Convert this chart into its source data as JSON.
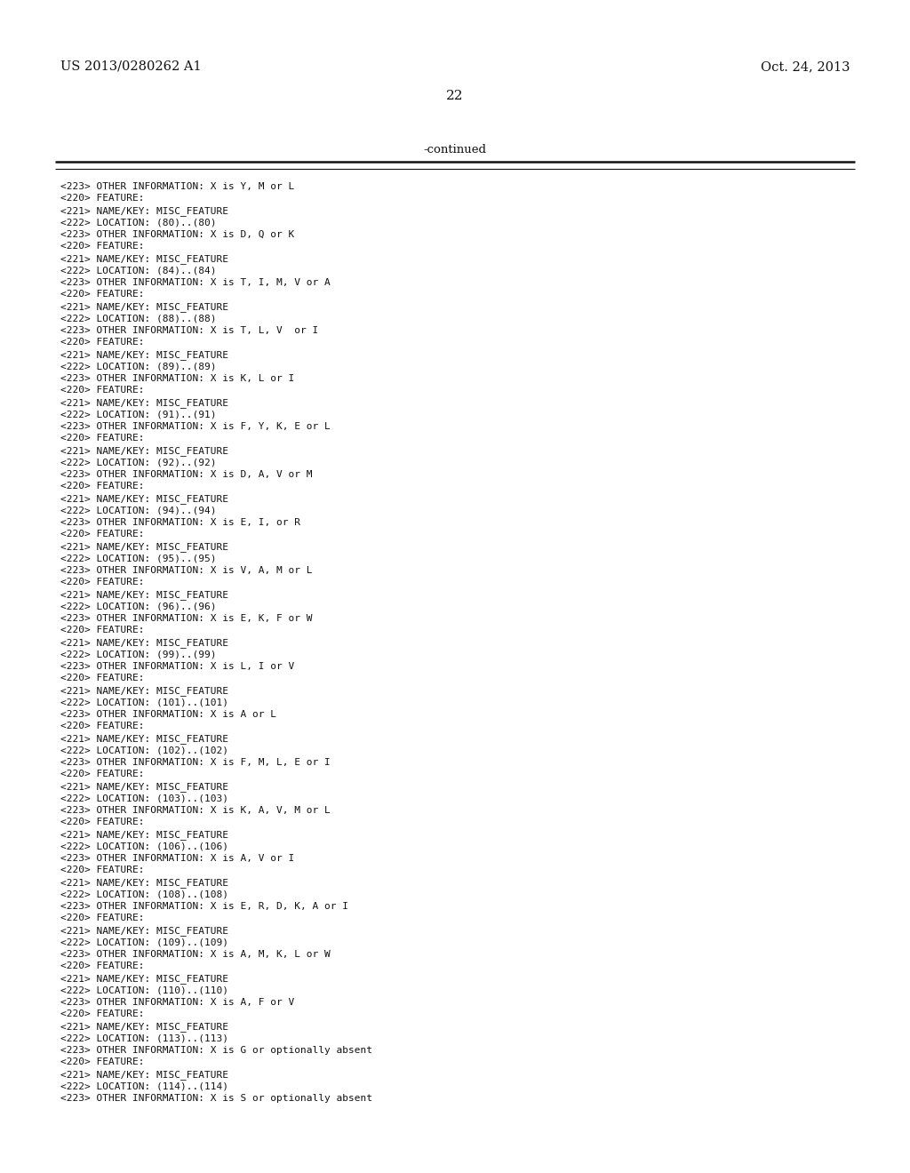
{
  "bg_color": "#ffffff",
  "header_left": "US 2013/0280262 A1",
  "header_right": "Oct. 24, 2013",
  "page_number": "22",
  "continued_label": "-continued",
  "font_family": "monospace",
  "header_fontsize": 10.5,
  "page_num_fontsize": 11,
  "continued_fontsize": 9.5,
  "body_fontsize": 8.0,
  "body_lines": [
    "<223> OTHER INFORMATION: X is Y, M or L",
    "<220> FEATURE:",
    "<221> NAME/KEY: MISC_FEATURE",
    "<222> LOCATION: (80)..(80)",
    "<223> OTHER INFORMATION: X is D, Q or K",
    "<220> FEATURE:",
    "<221> NAME/KEY: MISC_FEATURE",
    "<222> LOCATION: (84)..(84)",
    "<223> OTHER INFORMATION: X is T, I, M, V or A",
    "<220> FEATURE:",
    "<221> NAME/KEY: MISC_FEATURE",
    "<222> LOCATION: (88)..(88)",
    "<223> OTHER INFORMATION: X is T, L, V  or I",
    "<220> FEATURE:",
    "<221> NAME/KEY: MISC_FEATURE",
    "<222> LOCATION: (89)..(89)",
    "<223> OTHER INFORMATION: X is K, L or I",
    "<220> FEATURE:",
    "<221> NAME/KEY: MISC_FEATURE",
    "<222> LOCATION: (91)..(91)",
    "<223> OTHER INFORMATION: X is F, Y, K, E or L",
    "<220> FEATURE:",
    "<221> NAME/KEY: MISC_FEATURE",
    "<222> LOCATION: (92)..(92)",
    "<223> OTHER INFORMATION: X is D, A, V or M",
    "<220> FEATURE:",
    "<221> NAME/KEY: MISC_FEATURE",
    "<222> LOCATION: (94)..(94)",
    "<223> OTHER INFORMATION: X is E, I, or R",
    "<220> FEATURE:",
    "<221> NAME/KEY: MISC_FEATURE",
    "<222> LOCATION: (95)..(95)",
    "<223> OTHER INFORMATION: X is V, A, M or L",
    "<220> FEATURE:",
    "<221> NAME/KEY: MISC_FEATURE",
    "<222> LOCATION: (96)..(96)",
    "<223> OTHER INFORMATION: X is E, K, F or W",
    "<220> FEATURE:",
    "<221> NAME/KEY: MISC_FEATURE",
    "<222> LOCATION: (99)..(99)",
    "<223> OTHER INFORMATION: X is L, I or V",
    "<220> FEATURE:",
    "<221> NAME/KEY: MISC_FEATURE",
    "<222> LOCATION: (101)..(101)",
    "<223> OTHER INFORMATION: X is A or L",
    "<220> FEATURE:",
    "<221> NAME/KEY: MISC_FEATURE",
    "<222> LOCATION: (102)..(102)",
    "<223> OTHER INFORMATION: X is F, M, L, E or I",
    "<220> FEATURE:",
    "<221> NAME/KEY: MISC_FEATURE",
    "<222> LOCATION: (103)..(103)",
    "<223> OTHER INFORMATION: X is K, A, V, M or L",
    "<220> FEATURE:",
    "<221> NAME/KEY: MISC_FEATURE",
    "<222> LOCATION: (106)..(106)",
    "<223> OTHER INFORMATION: X is A, V or I",
    "<220> FEATURE:",
    "<221> NAME/KEY: MISC_FEATURE",
    "<222> LOCATION: (108)..(108)",
    "<223> OTHER INFORMATION: X is E, R, D, K, A or I",
    "<220> FEATURE:",
    "<221> NAME/KEY: MISC_FEATURE",
    "<222> LOCATION: (109)..(109)",
    "<223> OTHER INFORMATION: X is A, M, K, L or W",
    "<220> FEATURE:",
    "<221> NAME/KEY: MISC_FEATURE",
    "<222> LOCATION: (110)..(110)",
    "<223> OTHER INFORMATION: X is A, F or V",
    "<220> FEATURE:",
    "<221> NAME/KEY: MISC_FEATURE",
    "<222> LOCATION: (113)..(113)",
    "<223> OTHER INFORMATION: X is G or optionally absent",
    "<220> FEATURE:",
    "<221> NAME/KEY: MISC_FEATURE",
    "<222> LOCATION: (114)..(114)",
    "<223> OTHER INFORMATION: X is S or optionally absent"
  ]
}
